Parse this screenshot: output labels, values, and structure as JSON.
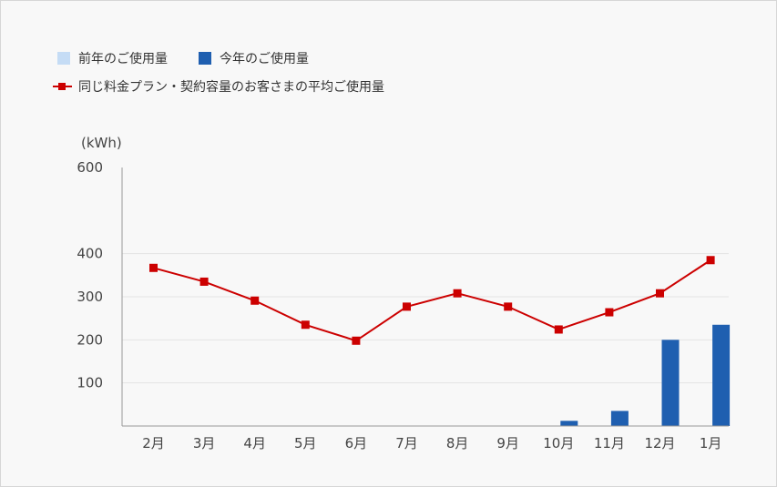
{
  "chart_data": {
    "type": "bar",
    "unit_label": "(kWh)",
    "categories": [
      "2月",
      "3月",
      "4月",
      "5月",
      "6月",
      "7月",
      "8月",
      "9月",
      "10月",
      "11月",
      "12月",
      "1月"
    ],
    "ylim": [
      0,
      600
    ],
    "y_ticks": [
      100,
      200,
      300,
      400,
      600
    ],
    "grid": true,
    "legend_position": "top-left",
    "series": [
      {
        "name": "前年のご使用量",
        "type": "bar",
        "color": "#c5dcf5",
        "values": [
          0,
          0,
          0,
          0,
          0,
          0,
          0,
          0,
          0,
          0,
          0,
          0
        ]
      },
      {
        "name": "今年のご使用量",
        "type": "bar",
        "color": "#1f5fb0",
        "values": [
          0,
          0,
          0,
          0,
          0,
          0,
          0,
          0,
          12,
          35,
          200,
          235
        ]
      },
      {
        "name": "同じ料金プラン・契約容量のお客さまの平均ご使用量",
        "type": "line",
        "color": "#cc0000",
        "values": [
          367,
          335,
          291,
          235,
          198,
          277,
          308,
          277,
          224,
          264,
          308,
          385
        ]
      }
    ]
  }
}
